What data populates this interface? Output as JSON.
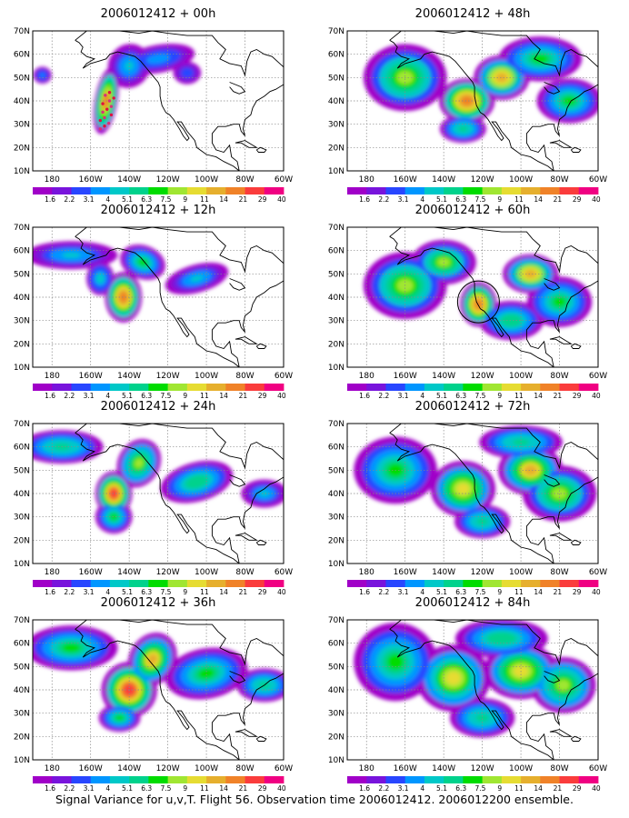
{
  "panels": [
    {
      "title": "2006012412 + 00h",
      "lead_h": 0
    },
    {
      "title": "2006012412 + 48h",
      "lead_h": 48
    },
    {
      "title": "2006012412 + 12h",
      "lead_h": 12
    },
    {
      "title": "2006012412 + 60h",
      "lead_h": 60
    },
    {
      "title": "2006012412 + 24h",
      "lead_h": 24
    },
    {
      "title": "2006012412 + 72h",
      "lead_h": 72
    },
    {
      "title": "2006012412 + 36h",
      "lead_h": 36
    },
    {
      "title": "2006012412 + 84h",
      "lead_h": 84
    }
  ],
  "map": {
    "lon_range": [
      -190,
      -60
    ],
    "lat_range": [
      10,
      70
    ],
    "lon_ticks": [
      {
        "value": -180,
        "label": "180"
      },
      {
        "value": -160,
        "label": "160W"
      },
      {
        "value": -140,
        "label": "140W"
      },
      {
        "value": -120,
        "label": "120W"
      },
      {
        "value": -100,
        "label": "100W"
      },
      {
        "value": -80,
        "label": "80W"
      },
      {
        "value": -60,
        "label": "60W"
      }
    ],
    "lat_ticks": [
      {
        "value": 10,
        "label": "10N"
      },
      {
        "value": 20,
        "label": "20N"
      },
      {
        "value": 30,
        "label": "30N"
      },
      {
        "value": 40,
        "label": "40N"
      },
      {
        "value": 50,
        "label": "50N"
      },
      {
        "value": 60,
        "label": "60N"
      },
      {
        "value": 70,
        "label": "70N"
      }
    ],
    "grid": true
  },
  "colorbar": {
    "labels": [
      "1.6",
      "2.2",
      "3.1",
      "4",
      "5.1",
      "6.3",
      "7.5",
      "9",
      "11",
      "14",
      "21",
      "29",
      "40"
    ],
    "colors": [
      "#a000c8",
      "#7814dc",
      "#2846ff",
      "#0096ff",
      "#00c8c8",
      "#00d28c",
      "#00dc00",
      "#a0e632",
      "#e6dc32",
      "#e6af2d",
      "#f08228",
      "#fa3c3c",
      "#f00082"
    ]
  },
  "footer": "Signal Variance for u,v,T. Flight 56. Observation time 2006012412. 2006012200 ensemble."
}
